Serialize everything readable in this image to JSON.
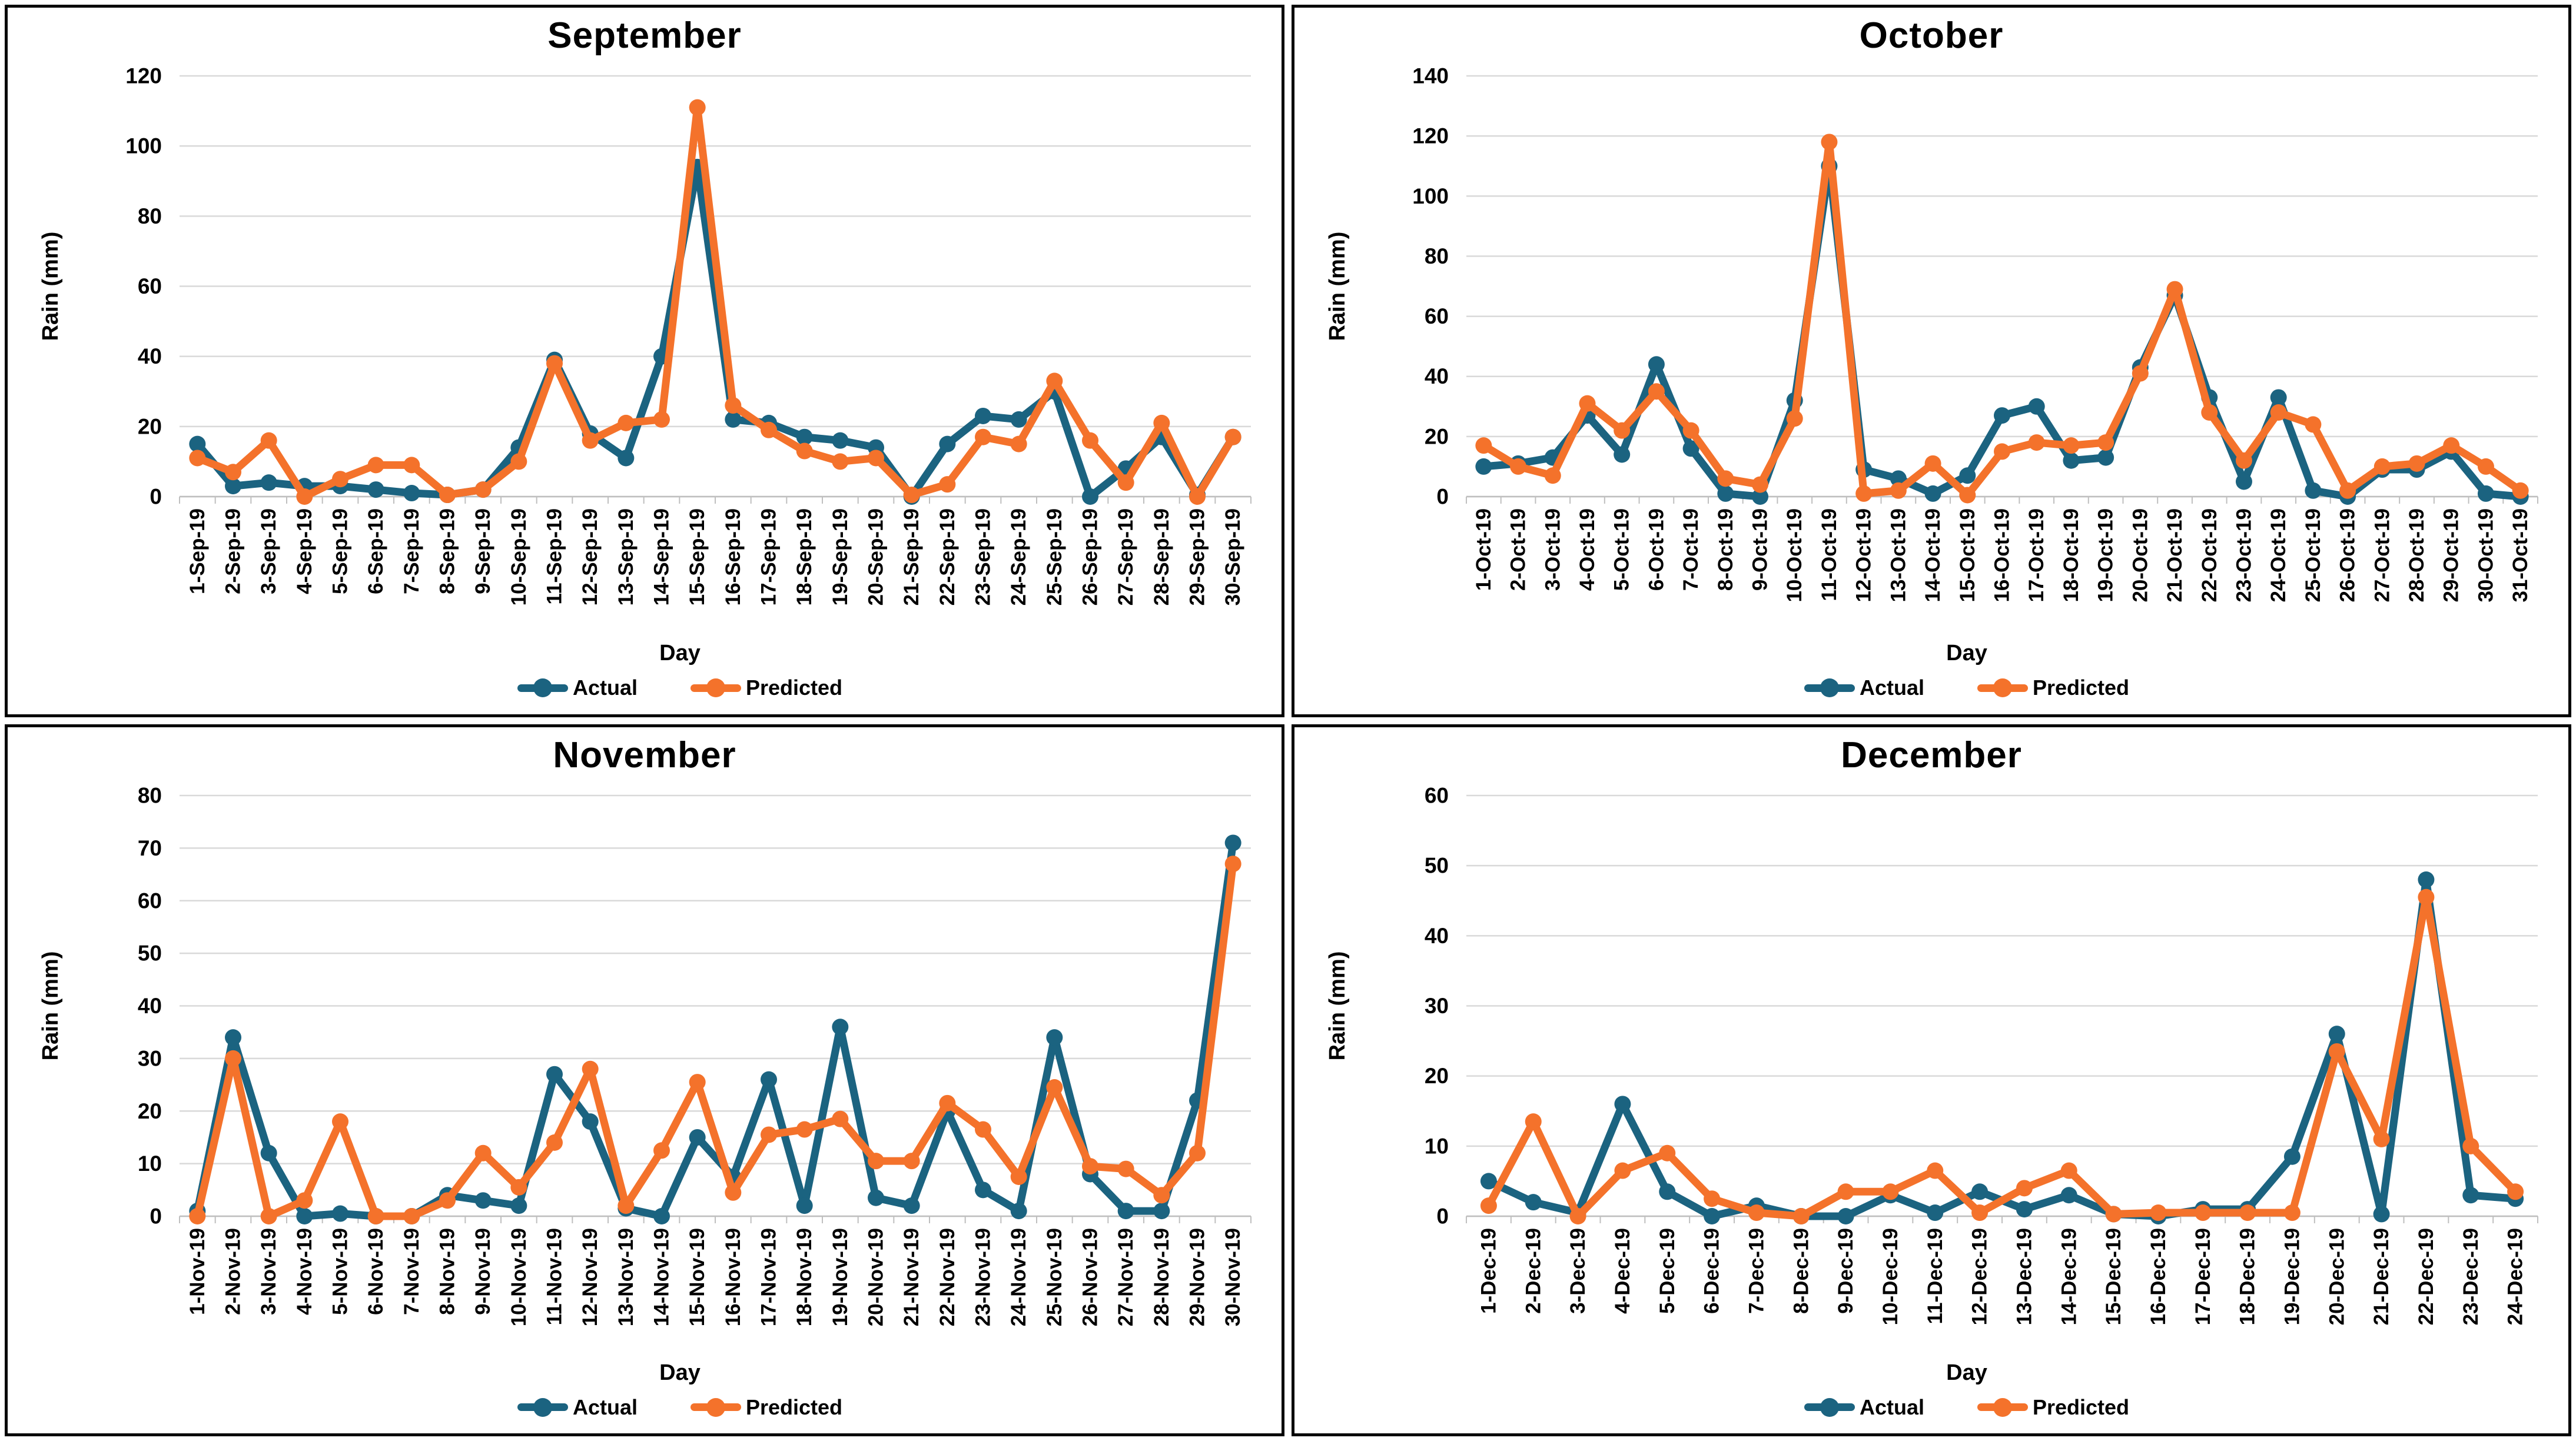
{
  "colors": {
    "actual": "#1b6380",
    "predicted": "#f4722b",
    "gridline": "#d9d9d9",
    "axis_line": "#bfbfbf",
    "text": "#000000",
    "panel_border": "#000000"
  },
  "chart_data": [
    {
      "type": "line",
      "title": "September",
      "xlabel": "Day",
      "ylabel": "Rain (mm)",
      "ylim": [
        0,
        120
      ],
      "ytick_step": 20,
      "grid": true,
      "legend_position": "bottom",
      "categories": [
        "1-Sep-19",
        "2-Sep-19",
        "3-Sep-19",
        "4-Sep-19",
        "5-Sep-19",
        "6-Sep-19",
        "7-Sep-19",
        "8-Sep-19",
        "9-Sep-19",
        "10-Sep-19",
        "11-Sep-19",
        "12-Sep-19",
        "13-Sep-19",
        "14-Sep-19",
        "15-Sep-19",
        "16-Sep-19",
        "17-Sep-19",
        "18-Sep-19",
        "19-Sep-19",
        "20-Sep-19",
        "21-Sep-19",
        "22-Sep-19",
        "23-Sep-19",
        "24-Sep-19",
        "25-Sep-19",
        "26-Sep-19",
        "27-Sep-19",
        "28-Sep-19",
        "29-Sep-19",
        "30-Sep-19"
      ],
      "series": [
        {
          "name": "Actual",
          "key": "actual",
          "values": [
            15,
            3,
            4,
            3,
            3,
            2,
            1,
            0.5,
            2,
            14,
            39,
            18,
            11,
            40,
            94,
            22,
            21,
            17,
            16,
            14,
            0,
            15,
            23,
            22,
            30,
            0,
            8,
            17,
            0.5,
            17
          ]
        },
        {
          "name": "Predicted",
          "key": "predicted",
          "values": [
            11,
            7,
            16,
            0,
            5,
            9,
            9,
            0.5,
            2,
            10,
            38,
            16,
            21,
            22,
            111,
            26,
            19,
            13,
            10,
            11,
            0.5,
            3.5,
            17,
            15,
            33,
            16,
            4,
            21,
            0,
            17
          ]
        }
      ]
    },
    {
      "type": "line",
      "title": "October",
      "xlabel": "Day",
      "ylabel": "Rain (mm)",
      "ylim": [
        0,
        140
      ],
      "ytick_step": 20,
      "grid": true,
      "legend_position": "bottom",
      "categories": [
        "1-Oct-19",
        "2-Oct-19",
        "3-Oct-19",
        "4-Oct-19",
        "5-Oct-19",
        "6-Oct-19",
        "7-Oct-19",
        "8-Oct-19",
        "9-Oct-19",
        "10-Oct-19",
        "11-Oct-19",
        "12-Oct-19",
        "13-Oct-19",
        "14-Oct-19",
        "15-Oct-19",
        "16-Oct-19",
        "17-Oct-19",
        "18-Oct-19",
        "19-Oct-19",
        "20-Oct-19",
        "21-Oct-19",
        "22-Oct-19",
        "23-Oct-19",
        "24-Oct-19",
        "25-Oct-19",
        "26-Oct-19",
        "27-Oct-19",
        "28-Oct-19",
        "29-Oct-19",
        "30-Oct-19",
        "31-Oct-19"
      ],
      "series": [
        {
          "name": "Actual",
          "key": "actual",
          "values": [
            10,
            11,
            13,
            27,
            14,
            44,
            16,
            1,
            0,
            32,
            110,
            9,
            6,
            1,
            7,
            27,
            30,
            12,
            13,
            43,
            67,
            33,
            5,
            33,
            2,
            0,
            9,
            9,
            15,
            1,
            0
          ]
        },
        {
          "name": "Predicted",
          "key": "predicted",
          "values": [
            17,
            10,
            7,
            31,
            22,
            35,
            22,
            6,
            4,
            26,
            118,
            1,
            2,
            11,
            0.5,
            15,
            18,
            17,
            18,
            41,
            69,
            28,
            12,
            28,
            24,
            2,
            10,
            11,
            17,
            10,
            2
          ]
        }
      ]
    },
    {
      "type": "line",
      "title": "November",
      "xlabel": "Day",
      "ylabel": "Rain (mm)",
      "ylim": [
        0,
        80
      ],
      "ytick_step": 10,
      "grid": true,
      "legend_position": "bottom",
      "categories": [
        "1-Nov-19",
        "2-Nov-19",
        "3-Nov-19",
        "4-Nov-19",
        "5-Nov-19",
        "6-Nov-19",
        "7-Nov-19",
        "8-Nov-19",
        "9-Nov-19",
        "10-Nov-19",
        "11-Nov-19",
        "12-Nov-19",
        "13-Nov-19",
        "14-Nov-19",
        "15-Nov-19",
        "16-Nov-19",
        "17-Nov-19",
        "18-Nov-19",
        "19-Nov-19",
        "20-Nov-19",
        "21-Nov-19",
        "22-Nov-19",
        "23-Nov-19",
        "24-Nov-19",
        "25-Nov-19",
        "26-Nov-19",
        "27-Nov-19",
        "28-Nov-19",
        "29-Nov-19",
        "30-Nov-19"
      ],
      "series": [
        {
          "name": "Actual",
          "key": "actual",
          "values": [
            1,
            34,
            12,
            0,
            0.5,
            0,
            0,
            4,
            3,
            2,
            27,
            18,
            1.5,
            0,
            15,
            7.5,
            26,
            2,
            36,
            3.5,
            2,
            20,
            5,
            1,
            34,
            8,
            1,
            1,
            22,
            71
          ]
        },
        {
          "name": "Predicted",
          "key": "predicted",
          "values": [
            0,
            30,
            0,
            3,
            18,
            0,
            0,
            3,
            12,
            5.5,
            14,
            28,
            2,
            12.5,
            25.5,
            4.5,
            15.5,
            16.5,
            18.5,
            10.5,
            10.5,
            21.5,
            16.5,
            7.5,
            24.5,
            9.5,
            9,
            4,
            12,
            67
          ]
        }
      ]
    },
    {
      "type": "line",
      "title": "December",
      "xlabel": "Day",
      "ylabel": "Rain (mm)",
      "ylim": [
        0,
        60
      ],
      "ytick_step": 10,
      "grid": true,
      "legend_position": "bottom",
      "categories": [
        "1-Dec-19",
        "2-Dec-19",
        "3-Dec-19",
        "4-Dec-19",
        "5-Dec-19",
        "6-Dec-19",
        "7-Dec-19",
        "8-Dec-19",
        "9-Dec-19",
        "10-Dec-19",
        "11-Dec-19",
        "12-Dec-19",
        "13-Dec-19",
        "14-Dec-19",
        "15-Dec-19",
        "16-Dec-19",
        "17-Dec-19",
        "18-Dec-19",
        "19-Dec-19",
        "20-Dec-19",
        "21-Dec-19",
        "22-Dec-19",
        "23-Dec-19",
        "24-Dec-19"
      ],
      "series": [
        {
          "name": "Actual",
          "key": "actual",
          "values": [
            5,
            2,
            0.5,
            16,
            3.5,
            0,
            1.5,
            0,
            0,
            3,
            0.5,
            3.5,
            1,
            3,
            0.3,
            0,
            1,
            1,
            8.5,
            26,
            0.3,
            48,
            3,
            2.5
          ]
        },
        {
          "name": "Predicted",
          "key": "predicted",
          "values": [
            1.5,
            13.5,
            0,
            6.5,
            9,
            2.5,
            0.5,
            0,
            3.5,
            3.5,
            6.5,
            0.5,
            4,
            6.5,
            0.3,
            0.5,
            0.5,
            0.5,
            0.5,
            23.5,
            11,
            45.5,
            10,
            3.5
          ]
        }
      ]
    }
  ]
}
